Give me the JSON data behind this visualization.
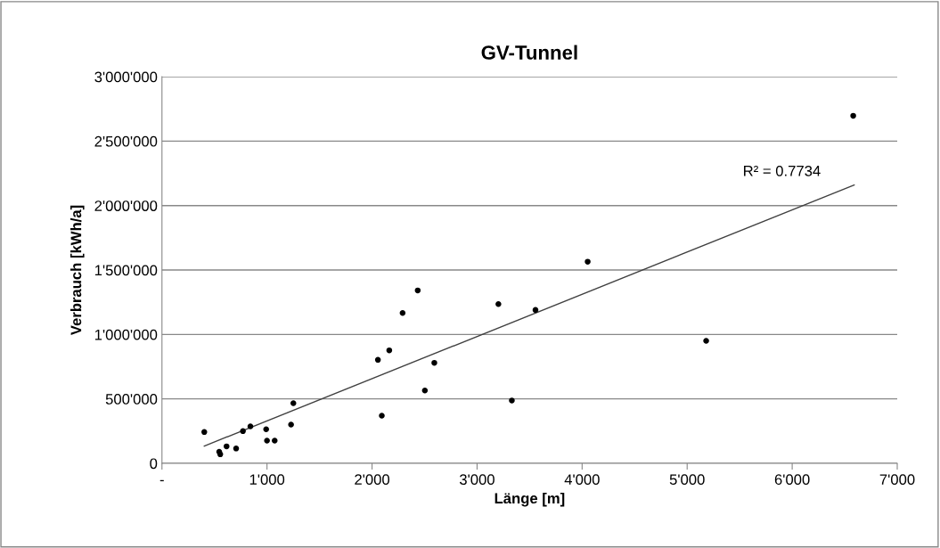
{
  "chart_data": {
    "type": "scatter",
    "title": "GV-Tunnel",
    "xlabel": "Länge [m]",
    "ylabel": "Verbrauch [kWh/a]",
    "xlim": [
      0,
      7000
    ],
    "ylim": [
      0,
      3000000
    ],
    "xticks": [
      {
        "value": 0,
        "label": "-"
      },
      {
        "value": 1000,
        "label": "1'000"
      },
      {
        "value": 2000,
        "label": "2'000"
      },
      {
        "value": 3000,
        "label": "3'000"
      },
      {
        "value": 4000,
        "label": "4'000"
      },
      {
        "value": 5000,
        "label": "5'000"
      },
      {
        "value": 6000,
        "label": "6'000"
      },
      {
        "value": 7000,
        "label": "7'000"
      }
    ],
    "yticks": [
      0,
      {
        "value": 500000,
        "label": "500'000"
      },
      {
        "value": 1000000,
        "label": "1'000'000"
      },
      {
        "value": 1500000,
        "label": "1'500'000"
      },
      {
        "value": 2000000,
        "label": "2'000'000"
      },
      {
        "value": 2500000,
        "label": "2'500'000"
      },
      {
        "value": 3000000,
        "label": "3'000'000"
      }
    ],
    "grid": "y",
    "marker": "circle",
    "series": [
      {
        "color": "#000000",
        "x": [
          403,
          545,
          555,
          615,
          706,
          771,
          842,
          992,
          1000,
          1073,
          1229,
          1251,
          2056,
          2093,
          2164,
          2291,
          2435,
          2503,
          2593,
          3203,
          3331,
          3556,
          4053,
          5181,
          6581
        ],
        "values": [
          243000,
          90000,
          70000,
          132000,
          115000,
          250000,
          287000,
          264000,
          176000,
          176000,
          301000,
          467000,
          803000,
          370000,
          877000,
          1167000,
          1342000,
          565000,
          780000,
          1236000,
          488000,
          1190000,
          1565000,
          951000,
          2697000
        ]
      },
      {
        "type": "line",
        "color": "#404040",
        "marker": "none",
        "x": [
          403,
          6590
        ],
        "values": [
          134000,
          2160000
        ]
      }
    ],
    "annotations": [
      "R² = 0.7734"
    ]
  }
}
